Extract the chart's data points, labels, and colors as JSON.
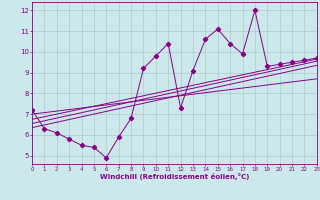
{
  "xlabel": "Windchill (Refroidissement éolien,°C)",
  "bg_color": "#cce8ea",
  "line_color": "#880088",
  "grid_color": "#aacccc",
  "xmin": 0,
  "xmax": 23,
  "ymin": 4.6,
  "ymax": 12.4,
  "yticks": [
    5,
    6,
    7,
    8,
    9,
    10,
    11,
    12
  ],
  "xticks": [
    0,
    1,
    2,
    3,
    4,
    5,
    6,
    7,
    8,
    9,
    10,
    11,
    12,
    13,
    14,
    15,
    16,
    17,
    18,
    19,
    20,
    21,
    22,
    23
  ],
  "series1_x": [
    0,
    1,
    2,
    3,
    4,
    5,
    6,
    7,
    8,
    9,
    10,
    11,
    12,
    13,
    14,
    15,
    16,
    17,
    18,
    19,
    20,
    21,
    22,
    23
  ],
  "series1_y": [
    7.2,
    6.3,
    6.1,
    5.8,
    5.5,
    5.4,
    4.9,
    5.9,
    6.8,
    9.2,
    9.8,
    10.4,
    7.3,
    9.1,
    10.6,
    11.1,
    10.4,
    9.9,
    12.0,
    9.3,
    9.4,
    9.5,
    9.6,
    9.7
  ],
  "trend1_x": [
    0,
    23
  ],
  "trend1_y": [
    6.55,
    9.55
  ],
  "trend2_x": [
    0,
    23
  ],
  "trend2_y": [
    6.35,
    9.35
  ],
  "trend3_x": [
    0,
    23
  ],
  "trend3_y": [
    6.75,
    9.65
  ],
  "trend4_x": [
    0,
    23
  ],
  "trend4_y": [
    7.0,
    8.7
  ]
}
